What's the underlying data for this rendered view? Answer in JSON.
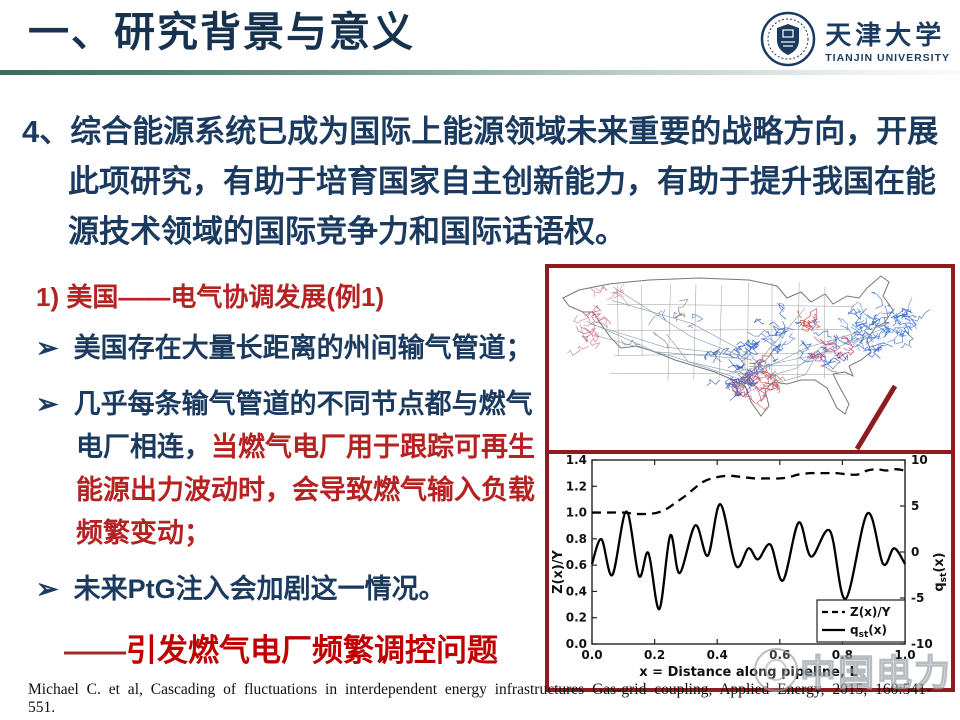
{
  "colors": {
    "navy": "#1b3a5f",
    "red_text": "#b42222",
    "bright_red": "#c00000",
    "maroon_border": "#8d1b20",
    "divider_teal": "#3b6a5c"
  },
  "header": {
    "title": "一、研究背景与意义",
    "logo_cn": "天津大学",
    "logo_en": "TIANJIN UNIVERSITY"
  },
  "body": {
    "point_number": "4、",
    "point_text": "综合能源系统已成为国际上能源领域未来重要的战略方向，开展此项研究，有助于培育国家自主创新能力，有助于提升我国在能源技术领域的国际竞争力和国际话语权。",
    "subheading": "1) 美国——电气协调发展(例1)",
    "bullets": [
      {
        "marker": "➢",
        "plain": "美国存在大量长距离的州间输气管道；",
        "highlight": ""
      },
      {
        "marker": "➢",
        "plain": "几乎每条输气管道的不同节点都与燃气电厂相连，",
        "highlight": "当燃气电厂用于跟踪可再生能源出力波动时，会导致燃气输入负载频繁变动；"
      },
      {
        "marker": "➢",
        "plain": "未来PtG注入会加剧这一情况。",
        "highlight": ""
      }
    ],
    "conclusion_dash": "——",
    "conclusion_text": "引发燃气电厂频繁调控问题"
  },
  "citation": "Michael C. et al, Cascading of fluctuations in interdependent energy infrastructures Gas-grid coupling, Applied Energy, 2015, 160:541-551.",
  "watermark": "中国电力",
  "chart_data": {
    "type": "line",
    "xlabel": "x = Distance along pipeline, L",
    "ylabel_left": "Z(x)/Y",
    "ylabel_right": "q_st(x)",
    "x_ticks": [
      0.0,
      0.2,
      0.4,
      0.6,
      0.8,
      1.0
    ],
    "y_left_ticks": [
      0.0,
      0.2,
      0.4,
      0.6,
      0.8,
      1.0,
      1.2,
      1.4
    ],
    "y_right_ticks": [
      -10,
      -5,
      0,
      5,
      10
    ],
    "x_range": [
      0,
      1
    ],
    "y_left_range": [
      0,
      1.4
    ],
    "y_right_range": [
      -10,
      10
    ],
    "grid": false,
    "legend_position": "lower right",
    "legend": [
      {
        "style": "dashed",
        "label": "Z(x)/Y"
      },
      {
        "style": "solid",
        "label": "q_st(x)"
      }
    ],
    "series": [
      {
        "name": "Z(x)/Y",
        "axis": "left",
        "style": "dashed",
        "x": [
          0,
          0.05,
          0.1,
          0.14,
          0.18,
          0.21,
          0.24,
          0.27,
          0.3,
          0.33,
          0.36,
          0.4,
          0.44,
          0.48,
          0.52,
          0.56,
          0.6,
          0.63,
          0.66,
          0.7,
          0.74,
          0.78,
          0.82,
          0.85,
          0.88,
          0.91,
          0.94,
          0.97,
          1.0
        ],
        "y": [
          1.0,
          1.0,
          1.0,
          0.99,
          0.99,
          1.0,
          1.03,
          1.08,
          1.13,
          1.19,
          1.24,
          1.27,
          1.28,
          1.27,
          1.26,
          1.26,
          1.26,
          1.27,
          1.29,
          1.3,
          1.3,
          1.3,
          1.29,
          1.29,
          1.32,
          1.33,
          1.32,
          1.33,
          1.32
        ]
      },
      {
        "name": "q_st(x)",
        "axis": "right",
        "style": "solid",
        "x": [
          0,
          0.03,
          0.065,
          0.11,
          0.15,
          0.18,
          0.215,
          0.25,
          0.28,
          0.33,
          0.37,
          0.41,
          0.46,
          0.5,
          0.53,
          0.57,
          0.61,
          0.66,
          0.7,
          0.76,
          0.81,
          0.88,
          0.93,
          0.965,
          1.0
        ],
        "y": [
          -1.3,
          1.4,
          -2.5,
          4.4,
          -2.6,
          -0.1,
          -6.2,
          1.8,
          -2.3,
          2.9,
          -0.4,
          5.2,
          -1.5,
          0.4,
          -0.8,
          0.8,
          -3.1,
          3.2,
          -0.5,
          2.3,
          -5.1,
          4.2,
          -1.3,
          0.4,
          -1.3
        ]
      }
    ]
  }
}
